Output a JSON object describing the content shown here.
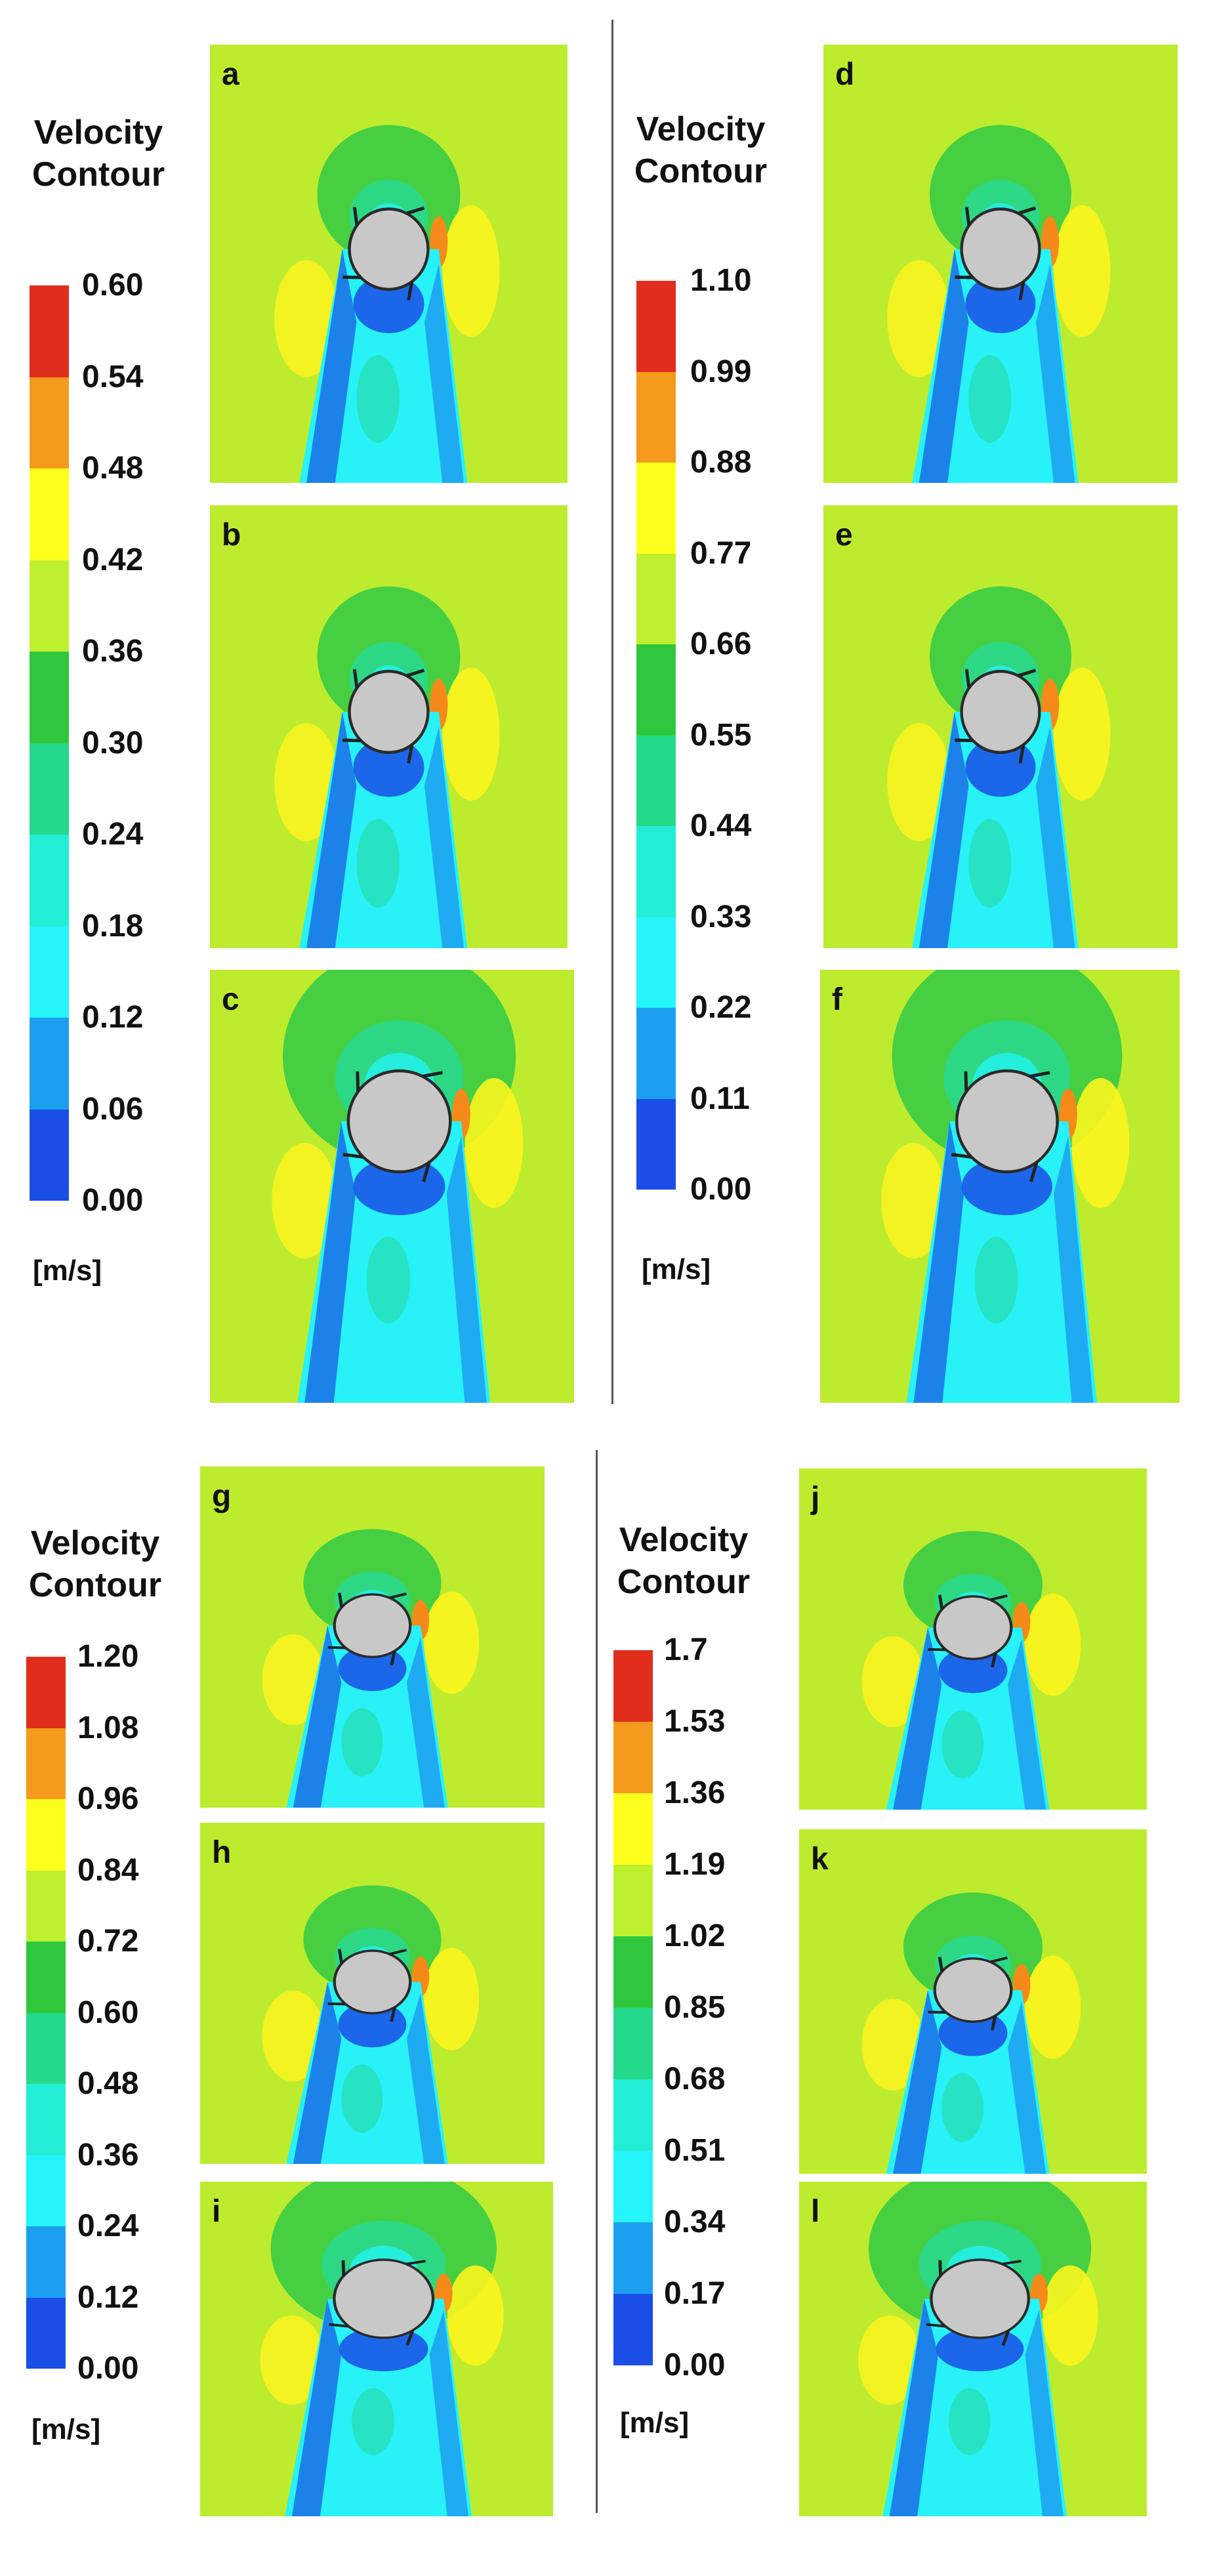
{
  "groups": [
    {
      "title": "Velocity\nContour",
      "unit": "[m/s]",
      "ticks": [
        "0.60",
        "0.54",
        "0.48",
        "0.42",
        "0.36",
        "0.30",
        "0.24",
        "0.18",
        "0.12",
        "0.06",
        "0.00"
      ],
      "panels": [
        {
          "label": "a",
          "variant": 1
        },
        {
          "label": "b",
          "variant": 2
        },
        {
          "label": "c",
          "variant": 3
        }
      ]
    },
    {
      "title": "Velocity\nContour",
      "unit": "[m/s]",
      "ticks": [
        "1.10",
        "0.99",
        "0.88",
        "0.77",
        "0.66",
        "0.55",
        "0.44",
        "0.33",
        "0.22",
        "0.11",
        "0.00"
      ],
      "panels": [
        {
          "label": "d",
          "variant": 1
        },
        {
          "label": "e",
          "variant": 2
        },
        {
          "label": "f",
          "variant": 3
        }
      ]
    },
    {
      "title": "Velocity\nContour",
      "unit": "[m/s]",
      "ticks": [
        "1.20",
        "1.08",
        "0.96",
        "0.84",
        "0.72",
        "0.60",
        "0.48",
        "0.36",
        "0.24",
        "0.12",
        "0.00"
      ],
      "panels": [
        {
          "label": "g",
          "variant": 1
        },
        {
          "label": "h",
          "variant": 2
        },
        {
          "label": "i",
          "variant": 3
        }
      ]
    },
    {
      "title": "Velocity\nContour",
      "unit": "[m/s]",
      "ticks": [
        "1.7",
        "1.53",
        "1.36",
        "1.19",
        "1.02",
        "0.85",
        "0.68",
        "0.51",
        "0.34",
        "0.17",
        "0.00"
      ],
      "panels": [
        {
          "label": "j",
          "variant": 1
        },
        {
          "label": "k",
          "variant": 2
        },
        {
          "label": "l",
          "variant": 3
        }
      ]
    }
  ],
  "colormap": [
    "#e02d1c",
    "#f59a1c",
    "#ffff1e",
    "#bff02e",
    "#2fc83c",
    "#25d98a",
    "#23eed5",
    "#25f4fa",
    "#1c9ff0",
    "#1a4ee6"
  ]
}
